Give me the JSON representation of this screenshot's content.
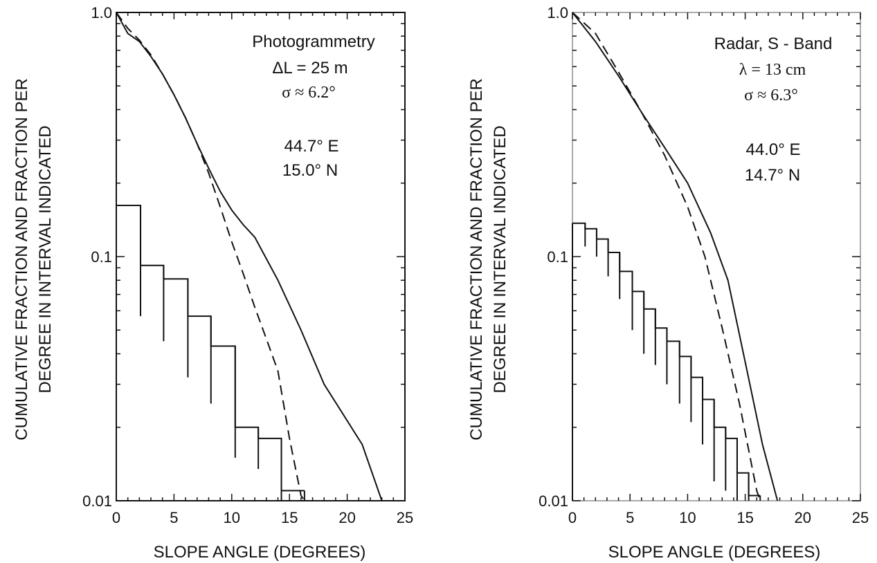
{
  "chart_data": [
    {
      "type": "line",
      "xlabel": "SLOPE ANGLE (DEGREES)",
      "ylabel_lines": [
        "CUMULATIVE FRACTION AND FRACTION PER",
        "DEGREE IN INTERVAL INDICATED"
      ],
      "xlim": [
        0,
        25
      ],
      "ylim": [
        0.01,
        1.0
      ],
      "yscale": "log",
      "x_ticks": [
        "0",
        "5",
        "10",
        "15",
        "20",
        "25"
      ],
      "y_ticks": [
        "0.01",
        "0.1",
        "1.0"
      ],
      "annotations": [
        "Photogrammetry",
        "ΔL = 25 m",
        "σ ≈ 6.2°",
        "44.7° E",
        "15.0° N"
      ],
      "series": [
        {
          "style": "solid",
          "x": [
            0,
            1,
            2,
            3,
            4,
            5,
            6,
            7,
            8,
            9,
            10,
            11,
            12,
            14,
            16,
            18,
            21.3,
            23
          ],
          "y": [
            1.0,
            0.82,
            0.76,
            0.66,
            0.56,
            0.46,
            0.37,
            0.29,
            0.23,
            0.185,
            0.155,
            0.135,
            0.12,
            0.08,
            0.05,
            0.03,
            0.017,
            0.01
          ]
        },
        {
          "style": "dashed",
          "x": [
            0,
            1,
            2,
            3,
            4,
            5,
            6,
            7,
            8,
            9,
            10,
            11,
            12,
            13,
            14,
            15,
            16,
            16.3
          ],
          "y": [
            1.0,
            0.86,
            0.77,
            0.67,
            0.56,
            0.46,
            0.37,
            0.29,
            0.22,
            0.16,
            0.115,
            0.085,
            0.062,
            0.046,
            0.034,
            0.018,
            0.0105,
            0.01
          ]
        }
      ],
      "histogram": {
        "edges": [
          0,
          2.1,
          4.1,
          6.2,
          8.2,
          10.3,
          12.3,
          14.3,
          16.3
        ],
        "values": [
          0.162,
          0.092,
          0.081,
          0.057,
          0.043,
          0.02,
          0.018,
          0.011
        ],
        "lower": [
          0.057,
          0.045,
          0.032,
          0.025,
          0.015,
          0.0135,
          0.01,
          0.01
        ]
      }
    },
    {
      "type": "line",
      "xlabel": "SLOPE ANGLE (DEGREES)",
      "ylabel_lines": [
        "CUMULATIVE FRACTION AND FRACTION PER",
        "DEGREE IN INTERVAL INDICATED"
      ],
      "xlim": [
        0,
        25
      ],
      "ylim": [
        0.01,
        1.0
      ],
      "yscale": "log",
      "x_ticks": [
        "0",
        "5",
        "10",
        "15",
        "20",
        "25"
      ],
      "y_ticks": [
        "0.01",
        "0.1",
        "1.0"
      ],
      "annotations": [
        "Radar, S - Band",
        "λ = 13 cm",
        "σ ≈ 6.3°",
        "44.0° E",
        "14.7° N"
      ],
      "series": [
        {
          "style": "solid",
          "x": [
            0,
            2,
            4,
            6,
            8,
            10,
            12,
            13.5,
            15,
            16.5,
            17.8
          ],
          "y": [
            1.0,
            0.76,
            0.55,
            0.39,
            0.28,
            0.2,
            0.125,
            0.08,
            0.037,
            0.017,
            0.01
          ]
        },
        {
          "style": "dashed",
          "x": [
            0,
            2,
            4,
            6,
            8,
            10,
            11.5,
            13,
            14.5,
            16,
            16.3
          ],
          "y": [
            1.0,
            0.82,
            0.57,
            0.39,
            0.26,
            0.16,
            0.1,
            0.051,
            0.025,
            0.011,
            0.01
          ]
        }
      ],
      "histogram": {
        "edges": [
          0,
          1.1,
          2.1,
          3.1,
          4.1,
          5.2,
          6.2,
          7.2,
          8.2,
          9.3,
          10.3,
          11.3,
          12.3,
          13.3,
          14.3,
          15.3,
          16.3
        ],
        "values": [
          0.137,
          0.13,
          0.118,
          0.104,
          0.087,
          0.072,
          0.061,
          0.051,
          0.045,
          0.039,
          0.032,
          0.026,
          0.02,
          0.018,
          0.013,
          0.0105
        ],
        "lower": [
          0.11,
          0.1,
          0.083,
          0.067,
          0.05,
          0.04,
          0.036,
          0.03,
          0.025,
          0.021,
          0.017,
          0.012,
          0.011,
          0.01,
          0.01,
          0.01
        ]
      }
    }
  ]
}
